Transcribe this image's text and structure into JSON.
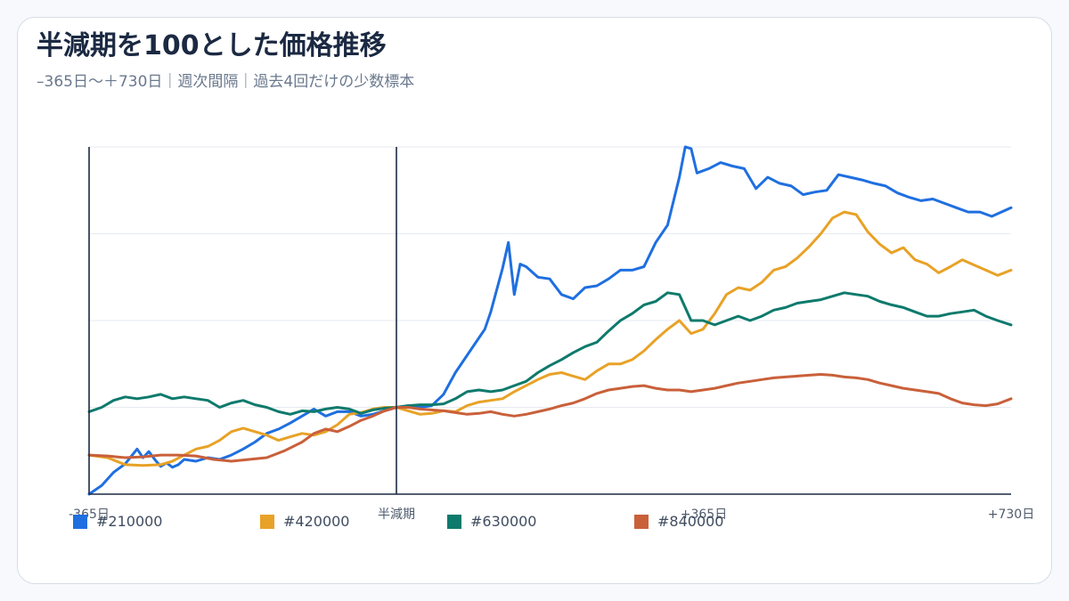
{
  "header": {
    "title": "半減期を100とした価格推移",
    "subtitle": "–365日〜＋730日｜週次間隔｜過去4回だけの少数標本"
  },
  "chart_data": {
    "type": "line",
    "title": "半減期を100とした価格推移",
    "subtitle": "–365日〜＋730日｜週次間隔｜過去4回だけの少数標本",
    "xlabel": "",
    "ylabel": "",
    "x_unit": "days_from_halving",
    "xlim": [
      -365,
      730
    ],
    "x_ticks": [
      {
        "value": -365,
        "label": "-365日"
      },
      {
        "value": 0,
        "label": "半減期"
      },
      {
        "value": 365,
        "label": "+365日"
      },
      {
        "value": 730,
        "label": "+730日"
      }
    ],
    "y_axis_labels_shown": false,
    "y_scale_note": "no y-axis tick labels are printed; values are on the indexed scale (halving day = 100), estimated with a 5-gridline scale of 0,20,40,60,80 ticks assumed per gridline spacing",
    "ylim": [
      0,
      400
    ],
    "y_gridlines": [
      100,
      200,
      300,
      400
    ],
    "reference_lines_x": [
      -365,
      0
    ],
    "grid": true,
    "legend_position": "bottom",
    "series": [
      {
        "name": "#210000",
        "color": "#1f6fe0",
        "points": [
          [
            -365,
            0
          ],
          [
            -350,
            10
          ],
          [
            -336,
            25
          ],
          [
            -322,
            35
          ],
          [
            -308,
            52
          ],
          [
            -301,
            42
          ],
          [
            -294,
            49
          ],
          [
            -287,
            40
          ],
          [
            -280,
            32
          ],
          [
            -273,
            36
          ],
          [
            -266,
            31
          ],
          [
            -259,
            34
          ],
          [
            -252,
            40
          ],
          [
            -238,
            38
          ],
          [
            -224,
            42
          ],
          [
            -210,
            40
          ],
          [
            -196,
            45
          ],
          [
            -182,
            52
          ],
          [
            -168,
            60
          ],
          [
            -154,
            70
          ],
          [
            -140,
            75
          ],
          [
            -126,
            82
          ],
          [
            -112,
            90
          ],
          [
            -98,
            98
          ],
          [
            -84,
            90
          ],
          [
            -70,
            95
          ],
          [
            -56,
            95
          ],
          [
            -42,
            90
          ],
          [
            -28,
            92
          ],
          [
            -14,
            96
          ],
          [
            0,
            100
          ],
          [
            14,
            102
          ],
          [
            28,
            100
          ],
          [
            42,
            102
          ],
          [
            56,
            115
          ],
          [
            70,
            140
          ],
          [
            84,
            160
          ],
          [
            98,
            180
          ],
          [
            105,
            190
          ],
          [
            112,
            210
          ],
          [
            119,
            235
          ],
          [
            126,
            260
          ],
          [
            133,
            290
          ],
          [
            140,
            230
          ],
          [
            147,
            265
          ],
          [
            154,
            262
          ],
          [
            168,
            250
          ],
          [
            182,
            248
          ],
          [
            196,
            230
          ],
          [
            210,
            225
          ],
          [
            224,
            238
          ],
          [
            238,
            240
          ],
          [
            252,
            248
          ],
          [
            266,
            258
          ],
          [
            280,
            258
          ],
          [
            294,
            262
          ],
          [
            308,
            290
          ],
          [
            322,
            310
          ],
          [
            336,
            365
          ],
          [
            343,
            400
          ],
          [
            350,
            398
          ],
          [
            357,
            370
          ],
          [
            371,
            375
          ],
          [
            385,
            382
          ],
          [
            399,
            378
          ],
          [
            413,
            375
          ],
          [
            427,
            352
          ],
          [
            441,
            365
          ],
          [
            455,
            358
          ],
          [
            469,
            355
          ],
          [
            483,
            345
          ],
          [
            497,
            348
          ],
          [
            511,
            350
          ],
          [
            525,
            368
          ],
          [
            539,
            365
          ],
          [
            553,
            362
          ],
          [
            567,
            358
          ],
          [
            581,
            355
          ],
          [
            595,
            347
          ],
          [
            609,
            342
          ],
          [
            623,
            338
          ],
          [
            637,
            340
          ],
          [
            651,
            335
          ],
          [
            665,
            330
          ],
          [
            679,
            325
          ],
          [
            693,
            325
          ],
          [
            707,
            320
          ],
          [
            730,
            330
          ]
        ]
      },
      {
        "name": "#420000",
        "color": "#e8a227",
        "points": [
          [
            -365,
            45
          ],
          [
            -343,
            42
          ],
          [
            -322,
            34
          ],
          [
            -301,
            33
          ],
          [
            -280,
            34
          ],
          [
            -266,
            38
          ],
          [
            -252,
            45
          ],
          [
            -238,
            52
          ],
          [
            -224,
            55
          ],
          [
            -210,
            62
          ],
          [
            -196,
            72
          ],
          [
            -182,
            76
          ],
          [
            -168,
            72
          ],
          [
            -154,
            68
          ],
          [
            -140,
            62
          ],
          [
            -126,
            66
          ],
          [
            -112,
            70
          ],
          [
            -98,
            68
          ],
          [
            -84,
            72
          ],
          [
            -70,
            80
          ],
          [
            -56,
            92
          ],
          [
            -42,
            94
          ],
          [
            -28,
            98
          ],
          [
            -14,
            100
          ],
          [
            0,
            100
          ],
          [
            14,
            96
          ],
          [
            28,
            92
          ],
          [
            42,
            93
          ],
          [
            56,
            96
          ],
          [
            70,
            95
          ],
          [
            84,
            102
          ],
          [
            98,
            106
          ],
          [
            112,
            108
          ],
          [
            126,
            110
          ],
          [
            140,
            118
          ],
          [
            154,
            125
          ],
          [
            168,
            132
          ],
          [
            182,
            138
          ],
          [
            196,
            140
          ],
          [
            210,
            136
          ],
          [
            224,
            132
          ],
          [
            238,
            142
          ],
          [
            252,
            150
          ],
          [
            266,
            150
          ],
          [
            280,
            155
          ],
          [
            294,
            165
          ],
          [
            308,
            178
          ],
          [
            322,
            190
          ],
          [
            336,
            200
          ],
          [
            350,
            185
          ],
          [
            364,
            190
          ],
          [
            378,
            208
          ],
          [
            392,
            230
          ],
          [
            406,
            238
          ],
          [
            420,
            235
          ],
          [
            434,
            244
          ],
          [
            448,
            258
          ],
          [
            462,
            262
          ],
          [
            476,
            272
          ],
          [
            490,
            285
          ],
          [
            504,
            300
          ],
          [
            518,
            318
          ],
          [
            532,
            325
          ],
          [
            546,
            322
          ],
          [
            560,
            302
          ],
          [
            574,
            288
          ],
          [
            588,
            278
          ],
          [
            602,
            284
          ],
          [
            616,
            270
          ],
          [
            630,
            265
          ],
          [
            644,
            255
          ],
          [
            658,
            262
          ],
          [
            672,
            270
          ],
          [
            686,
            264
          ],
          [
            700,
            258
          ],
          [
            714,
            252
          ],
          [
            730,
            258
          ]
        ]
      },
      {
        "name": "#630000",
        "color": "#0e7a6c",
        "points": [
          [
            -365,
            95
          ],
          [
            -350,
            100
          ],
          [
            -336,
            108
          ],
          [
            -322,
            112
          ],
          [
            -308,
            110
          ],
          [
            -294,
            112
          ],
          [
            -280,
            115
          ],
          [
            -266,
            110
          ],
          [
            -252,
            112
          ],
          [
            -238,
            110
          ],
          [
            -224,
            108
          ],
          [
            -210,
            100
          ],
          [
            -196,
            105
          ],
          [
            -182,
            108
          ],
          [
            -168,
            103
          ],
          [
            -154,
            100
          ],
          [
            -140,
            95
          ],
          [
            -126,
            92
          ],
          [
            -112,
            96
          ],
          [
            -98,
            95
          ],
          [
            -84,
            98
          ],
          [
            -70,
            100
          ],
          [
            -56,
            98
          ],
          [
            -42,
            93
          ],
          [
            -28,
            97
          ],
          [
            -14,
            99
          ],
          [
            0,
            100
          ],
          [
            14,
            102
          ],
          [
            28,
            103
          ],
          [
            42,
            103
          ],
          [
            56,
            104
          ],
          [
            70,
            110
          ],
          [
            84,
            118
          ],
          [
            98,
            120
          ],
          [
            112,
            118
          ],
          [
            126,
            120
          ],
          [
            140,
            125
          ],
          [
            154,
            130
          ],
          [
            168,
            140
          ],
          [
            182,
            148
          ],
          [
            196,
            155
          ],
          [
            210,
            163
          ],
          [
            224,
            170
          ],
          [
            238,
            175
          ],
          [
            252,
            188
          ],
          [
            266,
            200
          ],
          [
            280,
            208
          ],
          [
            294,
            218
          ],
          [
            308,
            222
          ],
          [
            322,
            232
          ],
          [
            336,
            230
          ],
          [
            350,
            200
          ],
          [
            364,
            200
          ],
          [
            378,
            195
          ],
          [
            392,
            200
          ],
          [
            406,
            205
          ],
          [
            420,
            200
          ],
          [
            434,
            205
          ],
          [
            448,
            212
          ],
          [
            462,
            215
          ],
          [
            476,
            220
          ],
          [
            490,
            222
          ],
          [
            504,
            224
          ],
          [
            518,
            228
          ],
          [
            532,
            232
          ],
          [
            546,
            230
          ],
          [
            560,
            228
          ],
          [
            574,
            222
          ],
          [
            588,
            218
          ],
          [
            602,
            215
          ],
          [
            616,
            210
          ],
          [
            630,
            205
          ],
          [
            644,
            205
          ],
          [
            658,
            208
          ],
          [
            672,
            210
          ],
          [
            686,
            212
          ],
          [
            700,
            205
          ],
          [
            714,
            200
          ],
          [
            730,
            195
          ]
        ]
      },
      {
        "name": "#840000",
        "color": "#c9603a",
        "points": [
          [
            -365,
            45
          ],
          [
            -343,
            44
          ],
          [
            -322,
            42
          ],
          [
            -301,
            43
          ],
          [
            -280,
            45
          ],
          [
            -259,
            45
          ],
          [
            -238,
            44
          ],
          [
            -217,
            40
          ],
          [
            -196,
            38
          ],
          [
            -175,
            40
          ],
          [
            -154,
            42
          ],
          [
            -133,
            50
          ],
          [
            -112,
            60
          ],
          [
            -98,
            70
          ],
          [
            -84,
            75
          ],
          [
            -70,
            72
          ],
          [
            -56,
            78
          ],
          [
            -42,
            85
          ],
          [
            -28,
            90
          ],
          [
            -14,
            96
          ],
          [
            0,
            100
          ],
          [
            14,
            100
          ],
          [
            28,
            98
          ],
          [
            42,
            97
          ],
          [
            56,
            96
          ],
          [
            70,
            94
          ],
          [
            84,
            92
          ],
          [
            98,
            93
          ],
          [
            112,
            95
          ],
          [
            126,
            92
          ],
          [
            140,
            90
          ],
          [
            154,
            92
          ],
          [
            168,
            95
          ],
          [
            182,
            98
          ],
          [
            196,
            102
          ],
          [
            210,
            105
          ],
          [
            224,
            110
          ],
          [
            238,
            116
          ],
          [
            252,
            120
          ],
          [
            266,
            122
          ],
          [
            280,
            124
          ],
          [
            294,
            125
          ],
          [
            308,
            122
          ],
          [
            322,
            120
          ],
          [
            336,
            120
          ],
          [
            350,
            118
          ],
          [
            364,
            120
          ],
          [
            378,
            122
          ],
          [
            392,
            125
          ],
          [
            406,
            128
          ],
          [
            420,
            130
          ],
          [
            434,
            132
          ],
          [
            448,
            134
          ],
          [
            462,
            135
          ],
          [
            476,
            136
          ],
          [
            490,
            137
          ],
          [
            504,
            138
          ],
          [
            518,
            137
          ],
          [
            532,
            135
          ],
          [
            546,
            134
          ],
          [
            560,
            132
          ],
          [
            574,
            128
          ],
          [
            588,
            125
          ],
          [
            602,
            122
          ],
          [
            616,
            120
          ],
          [
            630,
            118
          ],
          [
            644,
            116
          ],
          [
            658,
            110
          ],
          [
            672,
            105
          ],
          [
            686,
            103
          ],
          [
            700,
            102
          ],
          [
            714,
            104
          ],
          [
            730,
            110
          ]
        ]
      }
    ]
  }
}
